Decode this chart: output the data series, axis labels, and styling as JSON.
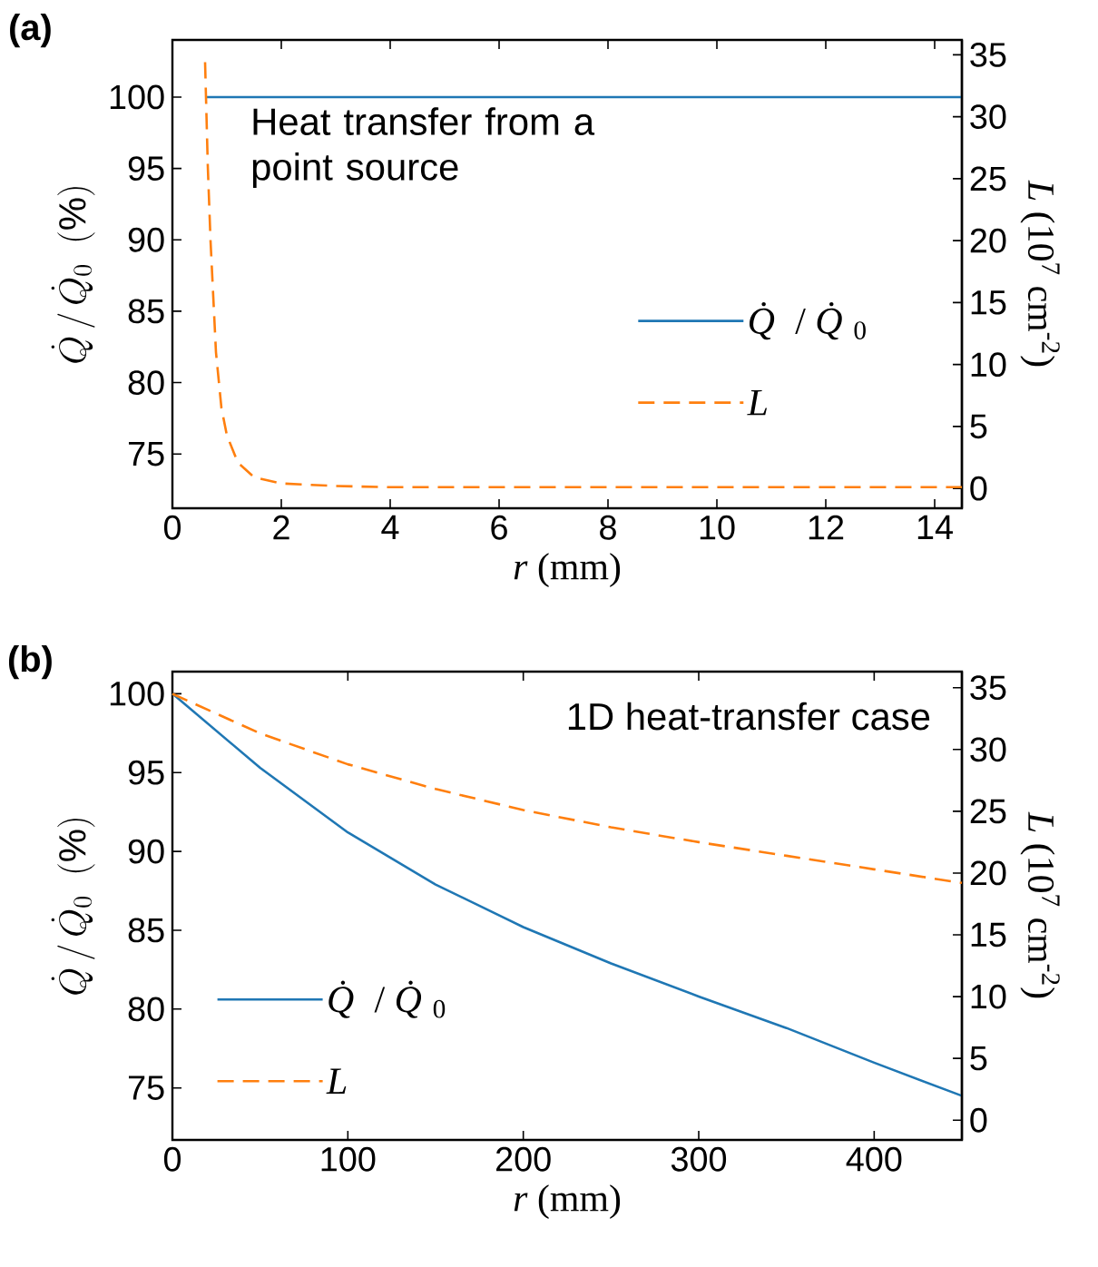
{
  "chart_data": [
    {
      "type": "line",
      "title": "(a)",
      "xlabel": "*r* (mm)",
      "ylabel": "\\dot{Q}\\,/\\,\\dot{Q}_0\\ \\ (\\%)",
      "y2label": "*L* (10$^{7}$ cm$^{-2}$)",
      "annotations": [
        "Heat transfer from a point source"
      ],
      "xlim": [
        0,
        14.5
      ],
      "xticks": [
        0,
        2,
        4,
        6,
        8,
        10,
        12,
        14
      ],
      "ylim": [
        71.2,
        104
      ],
      "yticks": [
        75,
        80,
        85,
        90,
        95,
        100
      ],
      "y2lim": [
        -1.6,
        36.2
      ],
      "y2ticks": [
        0,
        5,
        10,
        15,
        20,
        25,
        30,
        35
      ],
      "legend": "right",
      "series": [
        {
          "name": "*Q̇* / *Q̇*$_{0}$",
          "color": "#1f77b4",
          "line_style": "solid",
          "x": [
            0.6,
            14.5
          ],
          "values": [
            100,
            100
          ]
        },
        {
          "name": "*L*",
          "color": "#ff7f0e",
          "line_style": "dashed",
          "axis": "y2",
          "x": [
            0.6,
            0.65,
            0.7,
            0.8,
            0.9,
            1.0,
            1.2,
            1.5,
            2,
            3,
            4,
            14.5
          ],
          "values": [
            34.4,
            26,
            20,
            11,
            6.5,
            4.3,
            2.1,
            0.9,
            0.4,
            0.2,
            0.1,
            0.1
          ]
        }
      ]
    },
    {
      "type": "line",
      "title": "(b)",
      "xlabel": "*r* (mm)",
      "ylabel": "\\dot{Q}\\,/\\,\\dot{Q}_0\\ \\ (\\%)",
      "y2label": "*L* (10$^{7}$ cm$^{-2}$)",
      "annotations": [
        "1D heat-transfer case"
      ],
      "xlim": [
        0,
        450
      ],
      "xticks": [
        0,
        100,
        200,
        300,
        400
      ],
      "ylim": [
        71.7,
        101.4
      ],
      "yticks": [
        75,
        80,
        85,
        90,
        95,
        100
      ],
      "y2lim": [
        -1.6,
        36.3
      ],
      "y2ticks": [
        0,
        5,
        10,
        15,
        20,
        25,
        30,
        35
      ],
      "legend": "bottom left",
      "series": [
        {
          "name": "*Q̇* / *Q̇*$_{0}$",
          "color": "#1f77b4",
          "line_style": "solid",
          "x": [
            0,
            50,
            100,
            150,
            200,
            250,
            300,
            350,
            400,
            450
          ],
          "values": [
            100,
            95.3,
            91.2,
            87.9,
            85.2,
            82.9,
            80.8,
            78.8,
            76.6,
            74.5
          ]
        },
        {
          "name": "*L*",
          "color": "#ff7f0e",
          "line_style": "dashed",
          "axis": "y2",
          "x": [
            0,
            50,
            100,
            150,
            200,
            250,
            300,
            350,
            400,
            450
          ],
          "values": [
            34.5,
            31.3,
            28.8,
            26.8,
            25.1,
            23.7,
            22.5,
            21.4,
            20.3,
            19.2
          ]
        }
      ]
    }
  ]
}
